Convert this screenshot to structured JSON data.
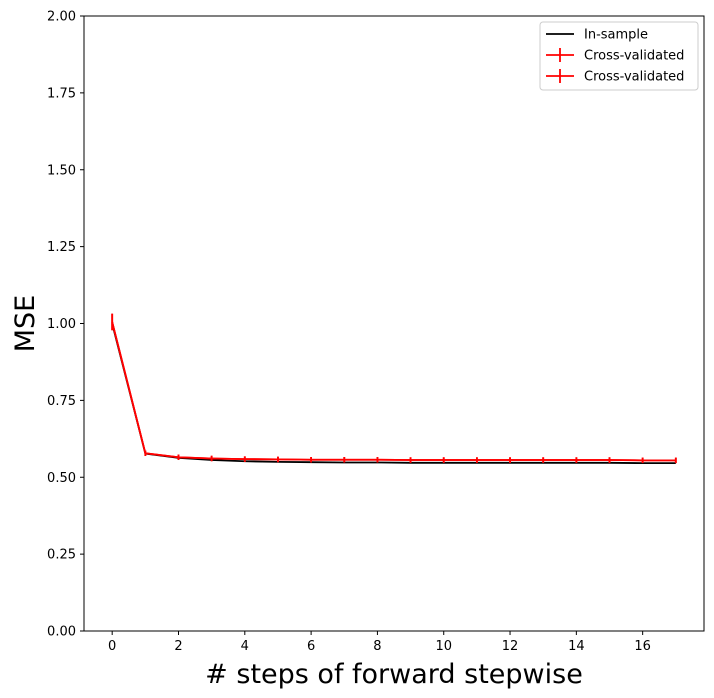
{
  "chart_data": {
    "type": "line",
    "xlabel": "# steps of forward stepwise",
    "ylabel": "MSE",
    "xlim": [
      -0.85,
      17.85
    ],
    "ylim": [
      0.0,
      2.0
    ],
    "xticks": [
      0,
      2,
      4,
      6,
      8,
      10,
      12,
      14,
      16
    ],
    "yticks": [
      0.0,
      0.25,
      0.5,
      0.75,
      1.0,
      1.25,
      1.5,
      1.75,
      2.0
    ],
    "xtick_labels": [
      "0",
      "2",
      "4",
      "6",
      "8",
      "10",
      "12",
      "14",
      "16"
    ],
    "ytick_labels": [
      "0.00",
      "0.25",
      "0.50",
      "0.75",
      "1.00",
      "1.25",
      "1.50",
      "1.75",
      "2.00"
    ],
    "grid": false,
    "legend_position": "top-right",
    "x": [
      0,
      1,
      2,
      3,
      4,
      5,
      6,
      7,
      8,
      9,
      10,
      11,
      12,
      13,
      14,
      15,
      16,
      17
    ],
    "series": [
      {
        "name": "In-sample",
        "color": "#000000",
        "errorbars": false,
        "values": [
          1.0,
          0.577,
          0.563,
          0.556,
          0.552,
          0.55,
          0.549,
          0.548,
          0.548,
          0.547,
          0.547,
          0.547,
          0.547,
          0.547,
          0.547,
          0.547,
          0.546,
          0.546
        ]
      },
      {
        "name": "Cross-validated",
        "color": "#ff0000",
        "errorbars": true,
        "values": [
          1.005,
          0.578,
          0.565,
          0.561,
          0.559,
          0.558,
          0.557,
          0.557,
          0.557,
          0.556,
          0.556,
          0.556,
          0.556,
          0.556,
          0.556,
          0.556,
          0.555,
          0.555
        ],
        "errors": [
          0.022,
          0.004,
          0.004,
          0.004,
          0.004,
          0.004,
          0.004,
          0.004,
          0.004,
          0.004,
          0.004,
          0.004,
          0.004,
          0.004,
          0.004,
          0.004,
          0.004,
          0.004
        ]
      },
      {
        "name": "Cross-validated",
        "color": "#ff0000",
        "errorbars": true,
        "values": [
          1.005,
          0.578,
          0.565,
          0.561,
          0.559,
          0.558,
          0.557,
          0.557,
          0.557,
          0.556,
          0.556,
          0.556,
          0.556,
          0.556,
          0.556,
          0.556,
          0.555,
          0.555
        ],
        "errors": [
          0.022,
          0.004,
          0.004,
          0.004,
          0.004,
          0.004,
          0.004,
          0.004,
          0.004,
          0.004,
          0.004,
          0.004,
          0.004,
          0.004,
          0.004,
          0.004,
          0.004,
          0.004
        ]
      }
    ]
  }
}
